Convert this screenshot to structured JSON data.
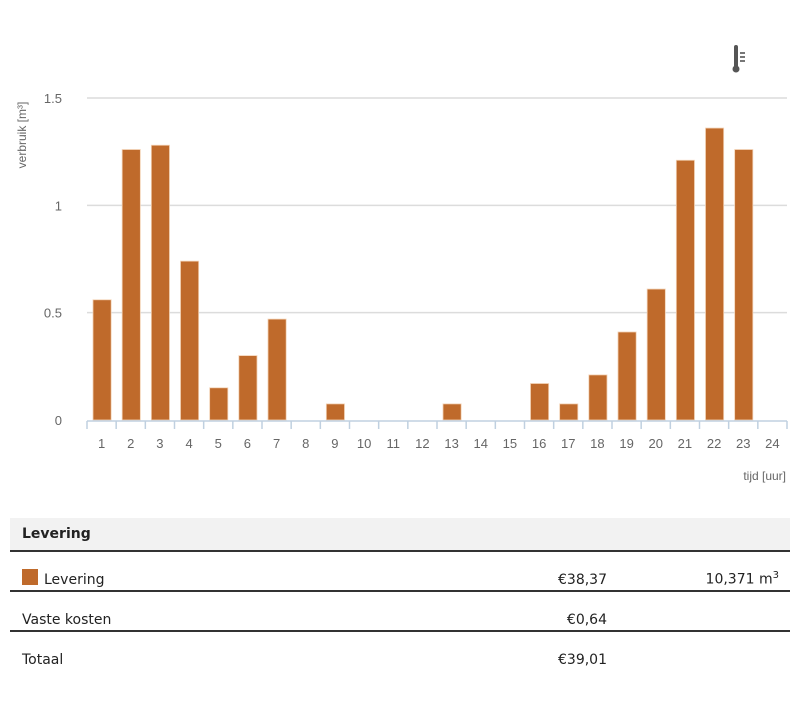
{
  "chart_data": {
    "type": "bar",
    "title": "",
    "xlabel": "tijd [uur]",
    "ylabel": "verbruik [m³]",
    "ylim": [
      0,
      1.5
    ],
    "yticks": [
      "0",
      "0.5",
      "1",
      "1.5"
    ],
    "grid": true,
    "categories": [
      "1",
      "2",
      "3",
      "4",
      "5",
      "6",
      "7",
      "8",
      "9",
      "10",
      "11",
      "12",
      "13",
      "14",
      "15",
      "16",
      "17",
      "18",
      "19",
      "20",
      "21",
      "22",
      "23",
      "24"
    ],
    "series": [
      {
        "name": "Levering",
        "color": "#bf6a2b",
        "values": [
          0.56,
          1.26,
          1.28,
          0.74,
          0.15,
          0.3,
          0.47,
          0,
          0.075,
          0,
          0,
          0,
          0.075,
          0,
          0,
          0.17,
          0.075,
          0.21,
          0.41,
          0.61,
          1.21,
          1.36,
          1.26,
          0
        ]
      }
    ]
  },
  "toolbar": {
    "thermometer_icon": "thermometer-icon"
  },
  "table": {
    "header": "Levering",
    "rows": [
      {
        "label": "Levering",
        "amount": "€38,37",
        "volume": "10,371 m",
        "volume_sup": "3",
        "swatch": true
      },
      {
        "label": "Vaste kosten",
        "amount": "€0,64",
        "volume": "",
        "volume_sup": ""
      },
      {
        "label": "Totaal",
        "amount": "€39,01",
        "volume": "",
        "volume_sup": ""
      }
    ]
  },
  "colors": {
    "bar": "#bf6a2b",
    "grid": "#dcdcdc",
    "axis": "#c0d0e0",
    "text": "#666666"
  }
}
